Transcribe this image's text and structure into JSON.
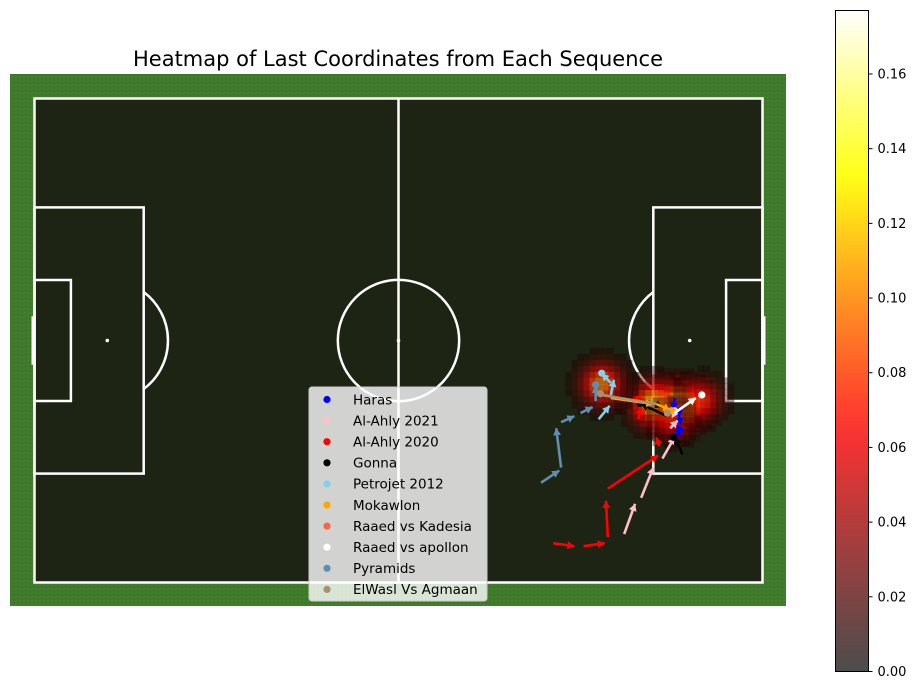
{
  "chart_data": {
    "type": "heatmap",
    "title": "Heatmap of Last Coordinates from Each Sequence",
    "pitch": {
      "length": 120,
      "width": 80,
      "grass_color": "#3f7a2a",
      "pitch_color": "#1e2414",
      "line_color": "#ffffff"
    },
    "colorbar": {
      "range": [
        0,
        0.177
      ],
      "ticks": [
        "0.00",
        "0.02",
        "0.04",
        "0.06",
        "0.08",
        "0.10",
        "0.12",
        "0.14",
        "0.16"
      ],
      "tick_values": [
        0,
        0.02,
        0.04,
        0.06,
        0.08,
        0.1,
        0.12,
        0.14,
        0.16
      ],
      "colormap": "hot"
    },
    "heat_spots": [
      {
        "x": 105.5,
        "y": 50.4,
        "density": 0.177,
        "spread": 2.6
      },
      {
        "x": 101.5,
        "y": 50.0,
        "density": 0.12,
        "spread": 2.6
      },
      {
        "x": 109.5,
        "y": 49.3,
        "density": 0.08,
        "spread": 2.4
      },
      {
        "x": 93.0,
        "y": 46.7,
        "density": 0.1,
        "spread": 2.5
      },
      {
        "x": 104.5,
        "y": 53.0,
        "density": 0.06,
        "spread": 2.2
      }
    ],
    "legend_position": "bottom-center",
    "series": [
      {
        "name": "Haras",
        "color": "#0000ff",
        "arrows": [
          [
            105.5,
            49.5,
            105.3,
            51.5
          ],
          [
            106.2,
            52.0,
            106.5,
            54.0
          ],
          [
            106.0,
            54.0,
            106.2,
            56.0
          ]
        ],
        "end_points": [
          [
            106.4,
            54.8
          ],
          [
            106.2,
            51.7
          ]
        ]
      },
      {
        "name": "Al-Ahly 2021",
        "color": "#ffc0cb",
        "arrows": [
          [
            97.2,
            72.0,
            99.0,
            67.0
          ],
          [
            100.0,
            66.0,
            102.0,
            61.0
          ],
          [
            103.5,
            59.5,
            105.5,
            56.0
          ],
          [
            104.8,
            54.5,
            106.0,
            53.2
          ],
          [
            105.5,
            52.3,
            105.0,
            51.5
          ]
        ],
        "end_points": [
          [
            105.5,
            51.6
          ]
        ]
      },
      {
        "name": "Al-Ahly 2020",
        "color": "#ff0000",
        "arrows": [
          [
            85.5,
            73.5,
            89.0,
            74.0
          ],
          [
            90.5,
            74.0,
            94.0,
            73.5
          ],
          [
            94.5,
            72.5,
            94.2,
            66.5
          ],
          [
            94.5,
            64.5,
            102.8,
            59.0
          ],
          [
            103.0,
            57.5,
            102.5,
            56.0
          ],
          [
            99.5,
            53.0,
            100.0,
            51.0
          ],
          [
            100.7,
            50.5,
            99.5,
            49.5
          ]
        ],
        "end_points": [
          [
            99.5,
            49.7
          ]
        ]
      },
      {
        "name": "Gonna",
        "color": "#000000",
        "arrows": [
          [
            106.8,
            58.8,
            105.5,
            56.0
          ],
          [
            104.3,
            52.5,
            100.0,
            50.5
          ],
          [
            101.0,
            50.0,
            103.5,
            51.0
          ]
        ],
        "end_points": [
          [
            99.8,
            50.4
          ],
          [
            105.3,
            56.0
          ]
        ]
      },
      {
        "name": "Petrojet 2012",
        "color": "#87ceeb",
        "arrows": [
          [
            93.0,
            53.0,
            94.8,
            50.8
          ],
          [
            95.0,
            49.0,
            95.5,
            46.5
          ],
          [
            95.0,
            47.0,
            93.5,
            45.5
          ]
        ],
        "end_points": [
          [
            93.5,
            45.4
          ]
        ]
      },
      {
        "name": "Mokawlon",
        "color": "#ffa500",
        "arrows": [
          [
            95.0,
            49.5,
            102.0,
            50.5
          ],
          [
            102.5,
            50.5,
            104.8,
            51.5
          ]
        ],
        "end_points": [
          [
            105.0,
            51.6
          ]
        ]
      },
      {
        "name": "Raaed vs Kadesia",
        "color": "#ff6347",
        "arrows": [],
        "end_points": []
      },
      {
        "name": "Raaed vs apollon",
        "color": "#ffffff",
        "arrows": [
          [
            105.5,
            52.0,
            109.0,
            49.5
          ]
        ],
        "end_points": [
          [
            110.0,
            49.0
          ]
        ]
      },
      {
        "name": "Pyramids",
        "color": "#5f8fb0",
        "arrows": [
          [
            83.5,
            63.5,
            86.5,
            61.5
          ],
          [
            86.8,
            61.0,
            86.0,
            54.5
          ],
          [
            86.8,
            53.5,
            89.0,
            52.5
          ],
          [
            90.0,
            52.0,
            92.0,
            51.0
          ],
          [
            92.5,
            50.0,
            92.5,
            47.5
          ]
        ],
        "end_points": [
          [
            92.5,
            47.3
          ]
        ]
      },
      {
        "name": "ElWasl Vs Agmaan",
        "color": "#a89070",
        "arrows": [
          [
            93.5,
            49.0,
            102.5,
            50.5
          ]
        ],
        "end_points": [
          [
            93.3,
            48.8
          ],
          [
            104.3,
            52.0
          ]
        ]
      }
    ]
  }
}
